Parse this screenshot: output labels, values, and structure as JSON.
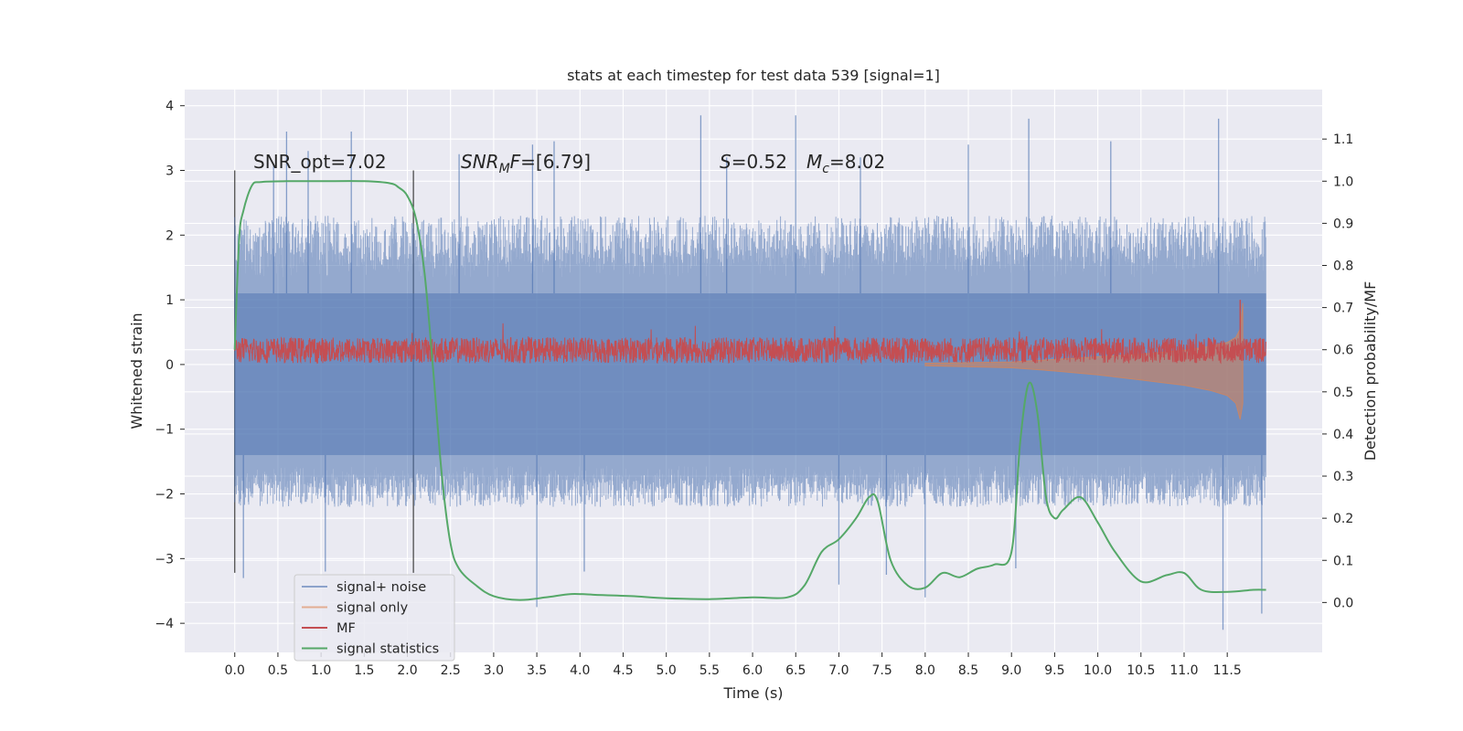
{
  "chart_data": {
    "type": "line",
    "title": "stats at each timestep for test data 539 [signal=1]",
    "xlabel": "Time (s)",
    "ylabel": "Whitened strain",
    "y2label": "Detection probability/MF",
    "xlim": [
      -0.58,
      12.6
    ],
    "ylim": [
      -4.45,
      4.25
    ],
    "y2lim": [
      -0.1185,
      1.2175
    ],
    "x_ticks": [
      0.0,
      0.5,
      1.0,
      1.5,
      2.0,
      2.5,
      3.0,
      3.5,
      4.0,
      4.5,
      5.0,
      5.5,
      6.0,
      6.5,
      7.0,
      7.5,
      8.0,
      8.5,
      9.0,
      9.5,
      10.0,
      10.5,
      11.0,
      11.5
    ],
    "x_tick_labels": [
      "0.0",
      "0.5",
      "1.0",
      "1.5",
      "2.0",
      "2.5",
      "3.0",
      "3.5",
      "4.0",
      "4.5",
      "5.0",
      "5.5",
      "6.0",
      "6.5",
      "7.0",
      "7.5",
      "8.0",
      "8.5",
      "9.0",
      "9.5",
      "10.0",
      "10.5",
      "11.0",
      "11.5"
    ],
    "y_ticks": [
      -4,
      -3,
      -2,
      -1,
      0,
      1,
      2,
      3,
      4
    ],
    "y_tick_labels": [
      "−4",
      "−3",
      "−2",
      "−1",
      "0",
      "1",
      "2",
      "3",
      "4"
    ],
    "y2_ticks": [
      0.0,
      0.1,
      0.2,
      0.3,
      0.4,
      0.5,
      0.6,
      0.7,
      0.8,
      0.9,
      1.0,
      1.1
    ],
    "y2_tick_labels": [
      "0.0",
      "0.1",
      "0.2",
      "0.3",
      "0.4",
      "0.5",
      "0.6",
      "0.7",
      "0.8",
      "0.9",
      "1.0",
      "1.1"
    ],
    "grid": true,
    "legend_position": "lower-left",
    "annotations": {
      "snr_opt": "SNR_opt=7.02",
      "snr_mf_main": "SNR",
      "snr_mf_sub": "M",
      "snr_mf_rest": "F=[6.79]",
      "s_label": "S",
      "s_value": "=0.52",
      "mc_label": "M",
      "mc_sub": "c",
      "mc_value": "=8.02"
    },
    "vertical_lines_x": [
      0.0,
      2.07
    ],
    "series": [
      {
        "name": "signal+ noise",
        "color": "#4c72b0",
        "axis": "left",
        "x_range": [
          0.0,
          11.95
        ],
        "envelope": {
          "upper_typical": 2.3,
          "lower_typical": -2.2,
          "band_upper": 1.1,
          "band_lower": -1.4,
          "upper_spikes": [
            [
              0.45,
              3.1
            ],
            [
              0.6,
              3.6
            ],
            [
              0.85,
              3.3
            ],
            [
              1.35,
              3.6
            ],
            [
              2.6,
              3.25
            ],
            [
              3.45,
              3.4
            ],
            [
              3.7,
              3.45
            ],
            [
              5.4,
              3.85
            ],
            [
              5.7,
              3.2
            ],
            [
              6.5,
              3.85
            ],
            [
              7.25,
              3.2
            ],
            [
              8.5,
              3.4
            ],
            [
              9.2,
              3.8
            ],
            [
              10.15,
              3.45
            ],
            [
              11.4,
              3.8
            ]
          ],
          "lower_spikes": [
            [
              0.1,
              -3.3
            ],
            [
              1.05,
              -3.2
            ],
            [
              3.5,
              -3.75
            ],
            [
              4.05,
              -3.2
            ],
            [
              7.0,
              -3.4
            ],
            [
              7.55,
              -3.25
            ],
            [
              8.0,
              -3.6
            ],
            [
              9.05,
              -3.15
            ],
            [
              11.45,
              -4.1
            ],
            [
              11.9,
              -3.85
            ]
          ]
        }
      },
      {
        "name": "signal only",
        "color": "#dd8452",
        "axis": "left",
        "x": [
          8.0,
          9.0,
          9.5,
          10.0,
          10.5,
          11.0,
          11.3,
          11.5,
          11.6,
          11.65,
          11.68
        ],
        "upper": [
          0.02,
          0.04,
          0.08,
          0.12,
          0.16,
          0.22,
          0.28,
          0.34,
          0.42,
          0.55,
          0.95
        ],
        "lower": [
          -0.02,
          -0.05,
          -0.1,
          -0.16,
          -0.24,
          -0.32,
          -0.4,
          -0.48,
          -0.6,
          -0.85,
          -0.6
        ]
      },
      {
        "name": "MF",
        "color": "#c44e52",
        "axis": "left",
        "x_range": [
          0.0,
          11.95
        ],
        "mean": 0.22,
        "amplitude": 0.2,
        "spike_x": 11.65,
        "spike_y": 1.0
      },
      {
        "name": "signal statistics",
        "color": "#55a868",
        "axis": "right",
        "x": [
          0.0,
          0.05,
          0.1,
          0.2,
          0.3,
          0.6,
          1.0,
          1.5,
          1.8,
          1.9,
          2.0,
          2.1,
          2.2,
          2.3,
          2.4,
          2.5,
          2.6,
          2.8,
          3.0,
          3.3,
          3.6,
          3.9,
          4.2,
          4.6,
          5.0,
          5.5,
          6.0,
          6.4,
          6.6,
          6.8,
          7.0,
          7.2,
          7.35,
          7.45,
          7.6,
          7.8,
          8.0,
          8.2,
          8.4,
          8.6,
          8.8,
          9.0,
          9.1,
          9.2,
          9.3,
          9.4,
          9.5,
          9.6,
          9.8,
          10.0,
          10.2,
          10.5,
          10.8,
          11.0,
          11.2,
          11.5,
          11.8,
          11.95
        ],
        "y": [
          0.6,
          0.86,
          0.93,
          0.99,
          0.998,
          1.0,
          1.0,
          1.0,
          0.995,
          0.985,
          0.965,
          0.91,
          0.78,
          0.55,
          0.3,
          0.14,
          0.08,
          0.04,
          0.015,
          0.006,
          0.012,
          0.02,
          0.018,
          0.015,
          0.01,
          0.008,
          0.012,
          0.012,
          0.04,
          0.12,
          0.15,
          0.2,
          0.25,
          0.24,
          0.1,
          0.04,
          0.035,
          0.07,
          0.06,
          0.08,
          0.09,
          0.12,
          0.38,
          0.52,
          0.45,
          0.25,
          0.2,
          0.22,
          0.25,
          0.19,
          0.12,
          0.05,
          0.065,
          0.07,
          0.03,
          0.025,
          0.03,
          0.03
        ]
      }
    ]
  }
}
